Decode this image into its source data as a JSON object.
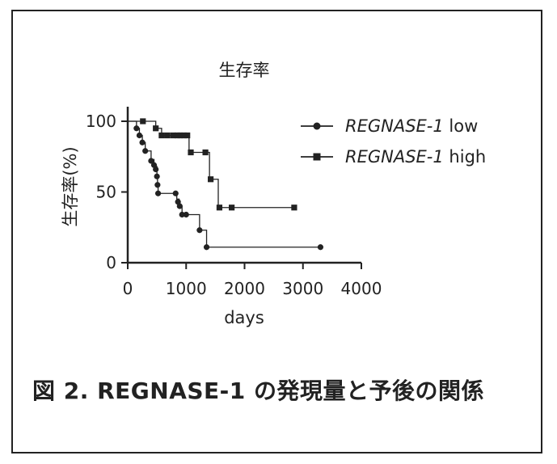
{
  "caption": "図 2. REGNASE-1 の発現量と予後の関係",
  "chart_data": {
    "type": "line",
    "title": "生存率",
    "xlabel": "days",
    "ylabel": "生存率(%)",
    "xlim": [
      0,
      4000
    ],
    "ylim": [
      0,
      100
    ],
    "xticks": [
      "0",
      "1000",
      "2000",
      "3000",
      "4000"
    ],
    "yticks": [
      "0",
      "50",
      "100"
    ],
    "grid": false,
    "legend_position": "top-right",
    "series": [
      {
        "name_italic": "REGNASE-1",
        "name_suffix": " low",
        "marker": "circle",
        "color": "#222222",
        "steps": [
          [
            0,
            100
          ],
          [
            150,
            95
          ],
          [
            200,
            90
          ],
          [
            250,
            85
          ],
          [
            300,
            79
          ],
          [
            400,
            73
          ],
          [
            450,
            68
          ],
          [
            500,
            60
          ],
          [
            510,
            55
          ],
          [
            520,
            49
          ],
          [
            840,
            45
          ],
          [
            880,
            40
          ],
          [
            930,
            34
          ],
          [
            1230,
            23
          ],
          [
            1350,
            11
          ],
          [
            3300,
            11
          ]
        ],
        "markers": [
          [
            150,
            95
          ],
          [
            200,
            90
          ],
          [
            250,
            85
          ],
          [
            300,
            79
          ],
          [
            400,
            72
          ],
          [
            450,
            69
          ],
          [
            480,
            66
          ],
          [
            500,
            61
          ],
          [
            510,
            55
          ],
          [
            520,
            49
          ],
          [
            820,
            49
          ],
          [
            860,
            43
          ],
          [
            890,
            40
          ],
          [
            930,
            34
          ],
          [
            1000,
            34
          ],
          [
            1230,
            23
          ],
          [
            1350,
            11
          ],
          [
            3300,
            11
          ]
        ]
      },
      {
        "name_italic": "REGNASE-1",
        "name_suffix": " high",
        "marker": "square",
        "color": "#222222",
        "steps": [
          [
            0,
            100
          ],
          [
            480,
            95
          ],
          [
            580,
            90
          ],
          [
            1050,
            78
          ],
          [
            1400,
            59
          ],
          [
            1550,
            39
          ],
          [
            2850,
            39
          ]
        ],
        "markers": [
          [
            260,
            100
          ],
          [
            480,
            95
          ],
          [
            580,
            90
          ],
          [
            680,
            90
          ],
          [
            780,
            90
          ],
          [
            850,
            90
          ],
          [
            900,
            90
          ],
          [
            960,
            90
          ],
          [
            1020,
            90
          ],
          [
            1080,
            78
          ],
          [
            1330,
            78
          ],
          [
            1420,
            59
          ],
          [
            1570,
            39
          ],
          [
            1780,
            39
          ],
          [
            2850,
            39
          ]
        ]
      }
    ]
  }
}
